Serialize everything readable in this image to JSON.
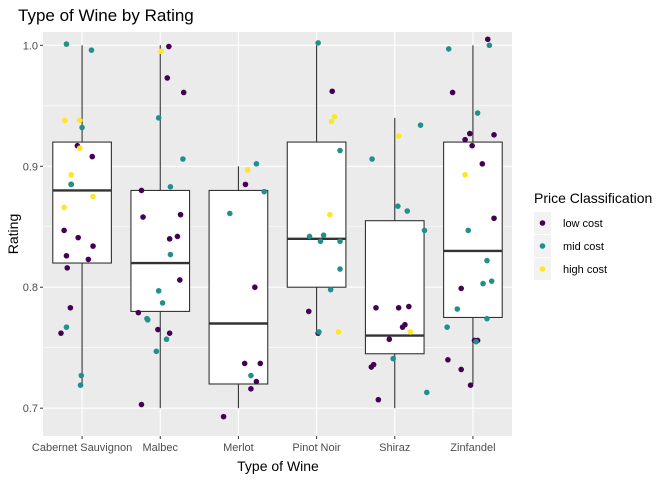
{
  "chart_data": {
    "type": "boxplot",
    "title": "Type of Wine by Rating",
    "xlabel": "Type of Wine",
    "ylabel": "Rating",
    "ylim": [
      0.677,
      1.011
    ],
    "yticks": [
      0.7,
      0.8,
      0.9,
      1.0
    ],
    "ytick_labels": [
      "0.7",
      "0.8",
      "0.9",
      "1.0"
    ],
    "categories": [
      "Cabernet Sauvignon",
      "Malbec",
      "Merlot",
      "Pinot Noir",
      "Shiraz",
      "Zinfandel"
    ],
    "boxes": [
      {
        "category": "Cabernet Sauvignon",
        "min": 0.72,
        "q1": 0.82,
        "median": 0.88,
        "q3": 0.92,
        "max": 1.0
      },
      {
        "category": "Malbec",
        "min": 0.7,
        "q1": 0.78,
        "median": 0.82,
        "q3": 0.88,
        "max": 1.0
      },
      {
        "category": "Merlot",
        "min": 0.7,
        "q1": 0.72,
        "median": 0.77,
        "q3": 0.88,
        "max": 0.9
      },
      {
        "category": "Pinot Noir",
        "min": 0.76,
        "q1": 0.8,
        "median": 0.84,
        "q3": 0.92,
        "max": 1.0
      },
      {
        "category": "Shiraz",
        "min": 0.7,
        "q1": 0.745,
        "median": 0.76,
        "q3": 0.855,
        "max": 0.94
      },
      {
        "category": "Zinfandel",
        "min": 0.72,
        "q1": 0.775,
        "median": 0.83,
        "q3": 0.92,
        "max": 1.0
      }
    ],
    "legend": {
      "title": "Price Classification",
      "position": "right",
      "entries": [
        {
          "label": "low cost",
          "color": "#440154"
        },
        {
          "label": "mid cost",
          "color": "#21908c"
        },
        {
          "label": "high cost",
          "color": "#fde725"
        }
      ]
    },
    "points": [
      {
        "cat": 0,
        "jitter": -0.27,
        "y": 0.762,
        "cls": "low"
      },
      {
        "cat": 0,
        "jitter": -0.23,
        "y": 0.847,
        "cls": "low"
      },
      {
        "cat": 0,
        "jitter": -0.2,
        "y": 0.826,
        "cls": "low"
      },
      {
        "cat": 0,
        "jitter": -0.19,
        "y": 0.816,
        "cls": "low"
      },
      {
        "cat": 0,
        "jitter": -0.15,
        "y": 0.783,
        "cls": "low"
      },
      {
        "cat": 0,
        "jitter": -0.06,
        "y": 0.917,
        "cls": "low"
      },
      {
        "cat": 0,
        "jitter": -0.05,
        "y": 0.841,
        "cls": "low"
      },
      {
        "cat": 0,
        "jitter": 0.08,
        "y": 0.823,
        "cls": "low"
      },
      {
        "cat": 0,
        "jitter": 0.14,
        "y": 0.834,
        "cls": "low"
      },
      {
        "cat": 0,
        "jitter": 0.13,
        "y": 0.908,
        "cls": "low"
      },
      {
        "cat": 0,
        "jitter": -0.14,
        "y": 0.885,
        "cls": "low"
      },
      {
        "cat": 0,
        "jitter": -0.2,
        "y": 1.001,
        "cls": "mid"
      },
      {
        "cat": 0,
        "jitter": -0.2,
        "y": 0.767,
        "cls": "mid"
      },
      {
        "cat": 0,
        "jitter": -0.14,
        "y": 0.885,
        "cls": "mid"
      },
      {
        "cat": 0,
        "jitter": -0.02,
        "y": 0.719,
        "cls": "mid"
      },
      {
        "cat": 0,
        "jitter": -0.01,
        "y": 0.727,
        "cls": "mid"
      },
      {
        "cat": 0,
        "jitter": 0.0,
        "y": 0.932,
        "cls": "mid"
      },
      {
        "cat": 0,
        "jitter": 0.12,
        "y": 0.996,
        "cls": "mid"
      },
      {
        "cat": 0,
        "jitter": -0.22,
        "y": 0.938,
        "cls": "high"
      },
      {
        "cat": 0,
        "jitter": -0.23,
        "y": 0.866,
        "cls": "high"
      },
      {
        "cat": 0,
        "jitter": -0.14,
        "y": 0.893,
        "cls": "high"
      },
      {
        "cat": 0,
        "jitter": -0.03,
        "y": 0.938,
        "cls": "high"
      },
      {
        "cat": 0,
        "jitter": -0.03,
        "y": 0.915,
        "cls": "high"
      },
      {
        "cat": 0,
        "jitter": 0.14,
        "y": 0.875,
        "cls": "high"
      },
      {
        "cat": 1,
        "jitter": -0.28,
        "y": 0.779,
        "cls": "low"
      },
      {
        "cat": 1,
        "jitter": -0.24,
        "y": 0.703,
        "cls": "low"
      },
      {
        "cat": 1,
        "jitter": -0.22,
        "y": 0.858,
        "cls": "low"
      },
      {
        "cat": 1,
        "jitter": -0.24,
        "y": 0.88,
        "cls": "low"
      },
      {
        "cat": 1,
        "jitter": -0.03,
        "y": 0.765,
        "cls": "low"
      },
      {
        "cat": 1,
        "jitter": 0.09,
        "y": 0.973,
        "cls": "low"
      },
      {
        "cat": 1,
        "jitter": 0.11,
        "y": 0.999,
        "cls": "low"
      },
      {
        "cat": 1,
        "jitter": 0.12,
        "y": 0.84,
        "cls": "low"
      },
      {
        "cat": 1,
        "jitter": 0.12,
        "y": 0.762,
        "cls": "low"
      },
      {
        "cat": 1,
        "jitter": 0.22,
        "y": 0.842,
        "cls": "low"
      },
      {
        "cat": 1,
        "jitter": 0.26,
        "y": 0.86,
        "cls": "low"
      },
      {
        "cat": 1,
        "jitter": 0.3,
        "y": 0.961,
        "cls": "low"
      },
      {
        "cat": 1,
        "jitter": 0.25,
        "y": 0.806,
        "cls": "low"
      },
      {
        "cat": 1,
        "jitter": -0.17,
        "y": 0.774,
        "cls": "mid"
      },
      {
        "cat": 1,
        "jitter": -0.16,
        "y": 0.773,
        "cls": "mid"
      },
      {
        "cat": 1,
        "jitter": -0.05,
        "y": 0.747,
        "cls": "mid"
      },
      {
        "cat": 1,
        "jitter": -0.02,
        "y": 0.94,
        "cls": "mid"
      },
      {
        "cat": 1,
        "jitter": -0.02,
        "y": 0.797,
        "cls": "mid"
      },
      {
        "cat": 1,
        "jitter": 0.03,
        "y": 0.787,
        "cls": "mid"
      },
      {
        "cat": 1,
        "jitter": 0.08,
        "y": 0.757,
        "cls": "mid"
      },
      {
        "cat": 1,
        "jitter": 0.13,
        "y": 0.827,
        "cls": "mid"
      },
      {
        "cat": 1,
        "jitter": 0.13,
        "y": 0.883,
        "cls": "mid"
      },
      {
        "cat": 1,
        "jitter": 0.29,
        "y": 0.906,
        "cls": "mid"
      },
      {
        "cat": 1,
        "jitter": 0.01,
        "y": 0.995,
        "cls": "high"
      },
      {
        "cat": 2,
        "jitter": -0.19,
        "y": 0.693,
        "cls": "low"
      },
      {
        "cat": 2,
        "jitter": 0.09,
        "y": 0.885,
        "cls": "low"
      },
      {
        "cat": 2,
        "jitter": 0.08,
        "y": 0.737,
        "cls": "low"
      },
      {
        "cat": 2,
        "jitter": 0.16,
        "y": 0.716,
        "cls": "low"
      },
      {
        "cat": 2,
        "jitter": 0.21,
        "y": 0.8,
        "cls": "low"
      },
      {
        "cat": 2,
        "jitter": 0.23,
        "y": 0.722,
        "cls": "low"
      },
      {
        "cat": 2,
        "jitter": 0.28,
        "y": 0.737,
        "cls": "low"
      },
      {
        "cat": 2,
        "jitter": -0.11,
        "y": 0.861,
        "cls": "mid"
      },
      {
        "cat": 2,
        "jitter": 0.16,
        "y": 0.727,
        "cls": "mid"
      },
      {
        "cat": 2,
        "jitter": 0.23,
        "y": 0.902,
        "cls": "mid"
      },
      {
        "cat": 2,
        "jitter": 0.33,
        "y": 0.879,
        "cls": "mid"
      },
      {
        "cat": 2,
        "jitter": 0.12,
        "y": 0.897,
        "cls": "high"
      },
      {
        "cat": 3,
        "jitter": -0.1,
        "y": 0.78,
        "cls": "low"
      },
      {
        "cat": 3,
        "jitter": 0.02,
        "y": 0.762,
        "cls": "low"
      },
      {
        "cat": 3,
        "jitter": 0.2,
        "y": 0.962,
        "cls": "low"
      },
      {
        "cat": 3,
        "jitter": -0.09,
        "y": 0.842,
        "cls": "mid"
      },
      {
        "cat": 3,
        "jitter": 0.02,
        "y": 1.002,
        "cls": "mid"
      },
      {
        "cat": 3,
        "jitter": 0.03,
        "y": 0.763,
        "cls": "mid"
      },
      {
        "cat": 3,
        "jitter": 0.05,
        "y": 0.838,
        "cls": "mid"
      },
      {
        "cat": 3,
        "jitter": 0.09,
        "y": 0.843,
        "cls": "mid"
      },
      {
        "cat": 3,
        "jitter": 0.18,
        "y": 0.798,
        "cls": "mid"
      },
      {
        "cat": 3,
        "jitter": 0.3,
        "y": 0.913,
        "cls": "mid"
      },
      {
        "cat": 3,
        "jitter": 0.3,
        "y": 0.838,
        "cls": "mid"
      },
      {
        "cat": 3,
        "jitter": 0.3,
        "y": 0.815,
        "cls": "mid"
      },
      {
        "cat": 3,
        "jitter": 0.17,
        "y": 0.86,
        "cls": "high"
      },
      {
        "cat": 3,
        "jitter": 0.19,
        "y": 0.937,
        "cls": "high"
      },
      {
        "cat": 3,
        "jitter": 0.23,
        "y": 0.941,
        "cls": "high"
      },
      {
        "cat": 3,
        "jitter": 0.28,
        "y": 0.763,
        "cls": "high"
      },
      {
        "cat": 4,
        "jitter": -0.3,
        "y": 0.734,
        "cls": "low"
      },
      {
        "cat": 4,
        "jitter": -0.27,
        "y": 0.736,
        "cls": "low"
      },
      {
        "cat": 4,
        "jitter": -0.24,
        "y": 0.783,
        "cls": "low"
      },
      {
        "cat": 4,
        "jitter": -0.21,
        "y": 0.707,
        "cls": "low"
      },
      {
        "cat": 4,
        "jitter": -0.07,
        "y": 0.757,
        "cls": "low"
      },
      {
        "cat": 4,
        "jitter": 0.05,
        "y": 0.783,
        "cls": "low"
      },
      {
        "cat": 4,
        "jitter": 0.1,
        "y": 0.767,
        "cls": "low"
      },
      {
        "cat": 4,
        "jitter": 0.13,
        "y": 0.769,
        "cls": "low"
      },
      {
        "cat": 4,
        "jitter": 0.18,
        "y": 0.784,
        "cls": "low"
      },
      {
        "cat": 4,
        "jitter": -0.29,
        "y": 0.906,
        "cls": "mid"
      },
      {
        "cat": 4,
        "jitter": -0.02,
        "y": 0.741,
        "cls": "mid"
      },
      {
        "cat": 4,
        "jitter": 0.04,
        "y": 0.867,
        "cls": "mid"
      },
      {
        "cat": 4,
        "jitter": 0.16,
        "y": 0.863,
        "cls": "mid"
      },
      {
        "cat": 4,
        "jitter": 0.33,
        "y": 0.934,
        "cls": "mid"
      },
      {
        "cat": 4,
        "jitter": 0.38,
        "y": 0.847,
        "cls": "mid"
      },
      {
        "cat": 4,
        "jitter": 0.41,
        "y": 0.713,
        "cls": "mid"
      },
      {
        "cat": 4,
        "jitter": 0.05,
        "y": 0.925,
        "cls": "high"
      },
      {
        "cat": 4,
        "jitter": 0.2,
        "y": 0.763,
        "cls": "high"
      },
      {
        "cat": 5,
        "jitter": -0.32,
        "y": 0.74,
        "cls": "low"
      },
      {
        "cat": 5,
        "jitter": -0.26,
        "y": 0.961,
        "cls": "low"
      },
      {
        "cat": 5,
        "jitter": -0.15,
        "y": 0.799,
        "cls": "low"
      },
      {
        "cat": 5,
        "jitter": -0.15,
        "y": 0.732,
        "cls": "low"
      },
      {
        "cat": 5,
        "jitter": -0.1,
        "y": 0.922,
        "cls": "low"
      },
      {
        "cat": 5,
        "jitter": -0.04,
        "y": 0.927,
        "cls": "low"
      },
      {
        "cat": 5,
        "jitter": -0.03,
        "y": 0.719,
        "cls": "low"
      },
      {
        "cat": 5,
        "jitter": -0.01,
        "y": 0.917,
        "cls": "low"
      },
      {
        "cat": 5,
        "jitter": 0.02,
        "y": 0.756,
        "cls": "low"
      },
      {
        "cat": 5,
        "jitter": 0.06,
        "y": 0.756,
        "cls": "low"
      },
      {
        "cat": 5,
        "jitter": 0.12,
        "y": 0.902,
        "cls": "low"
      },
      {
        "cat": 5,
        "jitter": 0.19,
        "y": 1.005,
        "cls": "low"
      },
      {
        "cat": 5,
        "jitter": 0.27,
        "y": 0.926,
        "cls": "low"
      },
      {
        "cat": 5,
        "jitter": 0.27,
        "y": 0.857,
        "cls": "low"
      },
      {
        "cat": 5,
        "jitter": -0.31,
        "y": 0.997,
        "cls": "mid"
      },
      {
        "cat": 5,
        "jitter": -0.33,
        "y": 0.767,
        "cls": "mid"
      },
      {
        "cat": 5,
        "jitter": -0.2,
        "y": 0.782,
        "cls": "mid"
      },
      {
        "cat": 5,
        "jitter": -0.06,
        "y": 0.847,
        "cls": "mid"
      },
      {
        "cat": 5,
        "jitter": 0.06,
        "y": 0.944,
        "cls": "mid"
      },
      {
        "cat": 5,
        "jitter": 0.04,
        "y": 0.755,
        "cls": "mid"
      },
      {
        "cat": 5,
        "jitter": 0.18,
        "y": 0.822,
        "cls": "mid"
      },
      {
        "cat": 5,
        "jitter": 0.18,
        "y": 0.774,
        "cls": "mid"
      },
      {
        "cat": 5,
        "jitter": 0.13,
        "y": 0.803,
        "cls": "mid"
      },
      {
        "cat": 5,
        "jitter": 0.21,
        "y": 1.0,
        "cls": "mid"
      },
      {
        "cat": 5,
        "jitter": 0.24,
        "y": 0.805,
        "cls": "mid"
      },
      {
        "cat": 5,
        "jitter": -0.1,
        "y": 0.893,
        "cls": "high"
      }
    ]
  }
}
